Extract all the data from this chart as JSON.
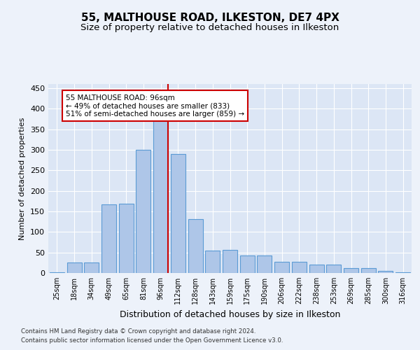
{
  "title": "55, MALTHOUSE ROAD, ILKESTON, DE7 4PX",
  "subtitle": "Size of property relative to detached houses in Ilkeston",
  "xlabel": "Distribution of detached houses by size in Ilkeston",
  "ylabel": "Number of detached properties",
  "categories": [
    "25sqm",
    "18sqm",
    "34sqm",
    "49sqm",
    "65sqm",
    "81sqm",
    "96sqm",
    "112sqm",
    "128sqm",
    "143sqm",
    "159sqm",
    "175sqm",
    "190sqm",
    "206sqm",
    "222sqm",
    "238sqm",
    "253sqm",
    "269sqm",
    "285sqm",
    "300sqm",
    "316sqm"
  ],
  "values": [
    1,
    25,
    25,
    167,
    168,
    300,
    375,
    290,
    132,
    55,
    57,
    42,
    42,
    28,
    28,
    20,
    20,
    12,
    12,
    5,
    2
  ],
  "bar_color": "#aec6e8",
  "bar_edge_color": "#5b9bd5",
  "highlight_index": 6,
  "highlight_line_color": "#cc0000",
  "annotation_text": "55 MALTHOUSE ROAD: 96sqm\n← 49% of detached houses are smaller (833)\n51% of semi-detached houses are larger (859) →",
  "annotation_box_color": "#ffffff",
  "annotation_box_edge": "#cc0000",
  "footer1": "Contains HM Land Registry data © Crown copyright and database right 2024.",
  "footer2": "Contains public sector information licensed under the Open Government Licence v3.0.",
  "bg_color": "#edf2fa",
  "plot_bg_color": "#dce6f5",
  "grid_color": "#ffffff",
  "ylim": [
    0,
    460
  ],
  "title_fontsize": 11,
  "subtitle_fontsize": 9.5
}
